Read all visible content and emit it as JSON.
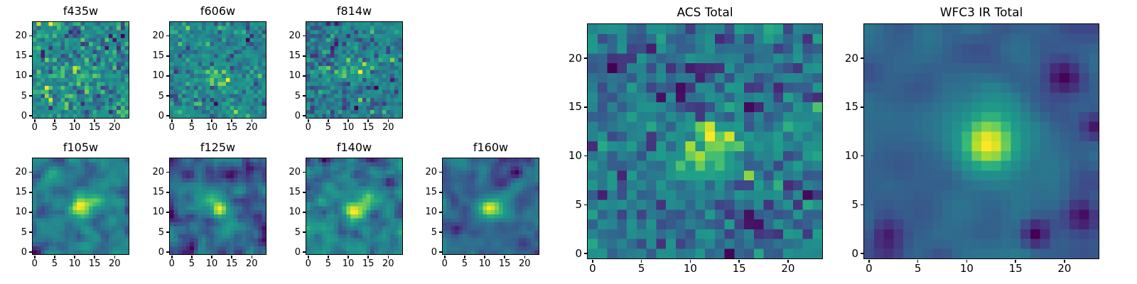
{
  "figure": {
    "background": "#ffffff"
  },
  "chart_data": {
    "type": "heatmap",
    "colormap": "viridis",
    "colormap_stops": [
      "#440154",
      "#482878",
      "#3e4989",
      "#31688e",
      "#26828e",
      "#21918c",
      "#1f9e89",
      "#35b779",
      "#6ece58",
      "#b5de2b",
      "#fde725"
    ],
    "grid_size": 24,
    "x_range": [
      -0.5,
      23.5
    ],
    "y_range": [
      -0.5,
      23.5
    ],
    "x_ticks": [
      0,
      5,
      10,
      15,
      20
    ],
    "y_ticks": [
      0,
      5,
      10,
      15,
      20
    ],
    "grid": "off",
    "legend": "none",
    "panels": [
      {
        "title": "f435w",
        "seed": 4351,
        "noise": 1.0,
        "smooth": 0,
        "features": [
          {
            "x": 12,
            "y": 10,
            "amp": 1.4,
            "sigma": 2.2
          }
        ]
      },
      {
        "title": "f606w",
        "seed": 6061,
        "noise": 1.0,
        "smooth": 0,
        "features": [
          {
            "x": 11,
            "y": 10,
            "amp": 1.8,
            "sigma": 1.8
          },
          {
            "x": 14,
            "y": 9,
            "amp": 1.2,
            "sigma": 1.2
          }
        ]
      },
      {
        "title": "f814w",
        "seed": 8141,
        "noise": 1.0,
        "smooth": 0,
        "features": [
          {
            "x": 9,
            "y": 11,
            "amp": 1.6,
            "sigma": 1.5
          },
          {
            "x": 12,
            "y": 11,
            "amp": 1.8,
            "sigma": 1.6
          },
          {
            "x": 15,
            "y": 12,
            "amp": 1.2,
            "sigma": 1.4
          }
        ]
      },
      {
        "title": "f105w",
        "seed": 1051,
        "noise": 1.0,
        "smooth": 0.9,
        "features": [
          {
            "x": 11,
            "y": 11,
            "amp": 2.2,
            "sigma": 2.0
          },
          {
            "x": 15,
            "y": 13,
            "amp": 1.5,
            "sigma": 2.0
          },
          {
            "x": 4,
            "y": 20,
            "amp": 1.2,
            "sigma": 1.5
          }
        ]
      },
      {
        "title": "f125w",
        "seed": 1251,
        "noise": 1.0,
        "smooth": 0.9,
        "features": [
          {
            "x": 12,
            "y": 11,
            "amp": 2.4,
            "sigma": 1.8
          },
          {
            "x": 8,
            "y": 14,
            "amp": 1.5,
            "sigma": 2.2
          },
          {
            "x": 15,
            "y": 6,
            "amp": 1.3,
            "sigma": 1.8
          }
        ]
      },
      {
        "title": "f140w",
        "seed": 1401,
        "noise": 1.0,
        "smooth": 0.8,
        "features": [
          {
            "x": 11,
            "y": 10,
            "amp": 2.6,
            "sigma": 1.8
          },
          {
            "x": 14,
            "y": 12,
            "amp": 1.8,
            "sigma": 2.0
          },
          {
            "x": 5,
            "y": 3,
            "amp": 1.2,
            "sigma": 1.5
          },
          {
            "x": 20,
            "y": 17,
            "amp": -1.5,
            "sigma": 1.0
          }
        ]
      },
      {
        "title": "f160w",
        "seed": 1601,
        "noise": 1.0,
        "smooth": 1.0,
        "features": [
          {
            "x": 11,
            "y": 11,
            "amp": 3.0,
            "sigma": 1.6
          },
          {
            "x": 14,
            "y": 12,
            "amp": 1.5,
            "sigma": 2.2
          },
          {
            "x": 18,
            "y": 20,
            "amp": -1.8,
            "sigma": 1.2
          },
          {
            "x": 3,
            "y": 6,
            "amp": -1.0,
            "sigma": 1.2
          }
        ]
      },
      {
        "title": "ACS Total",
        "seed": 777,
        "noise": 1.0,
        "smooth": 0.35,
        "features": [
          {
            "x": 11,
            "y": 10,
            "amp": 2.2,
            "sigma": 2.4
          },
          {
            "x": 13,
            "y": 12,
            "amp": 1.6,
            "sigma": 2.0
          },
          {
            "x": 9,
            "y": 17,
            "amp": -2.2,
            "sigma": 0.9
          },
          {
            "x": 3,
            "y": 20,
            "amp": -2.0,
            "sigma": 0.8
          },
          {
            "x": 16,
            "y": 3,
            "amp": -1.8,
            "sigma": 0.8
          },
          {
            "x": 22,
            "y": 13,
            "amp": 1.5,
            "sigma": 1.5
          },
          {
            "x": 12,
            "y": 18,
            "amp": -1.6,
            "sigma": 0.7
          }
        ]
      },
      {
        "title": "WFC3 IR Total",
        "seed": 888,
        "noise": 1.0,
        "smooth": 1.2,
        "features": [
          {
            "x": 12,
            "y": 11,
            "amp": 3.6,
            "sigma": 1.8
          },
          {
            "x": 13,
            "y": 12,
            "amp": 2.0,
            "sigma": 3.5
          },
          {
            "x": 20,
            "y": 18,
            "amp": -2.6,
            "sigma": 1.4
          },
          {
            "x": 22,
            "y": 4,
            "amp": -2.0,
            "sigma": 1.2
          },
          {
            "x": 17,
            "y": 2,
            "amp": -2.2,
            "sigma": 1.0
          },
          {
            "x": 2,
            "y": 2,
            "amp": -1.2,
            "sigma": 1.2
          },
          {
            "x": 23,
            "y": 13,
            "amp": -1.5,
            "sigma": 0.9
          }
        ]
      }
    ]
  }
}
